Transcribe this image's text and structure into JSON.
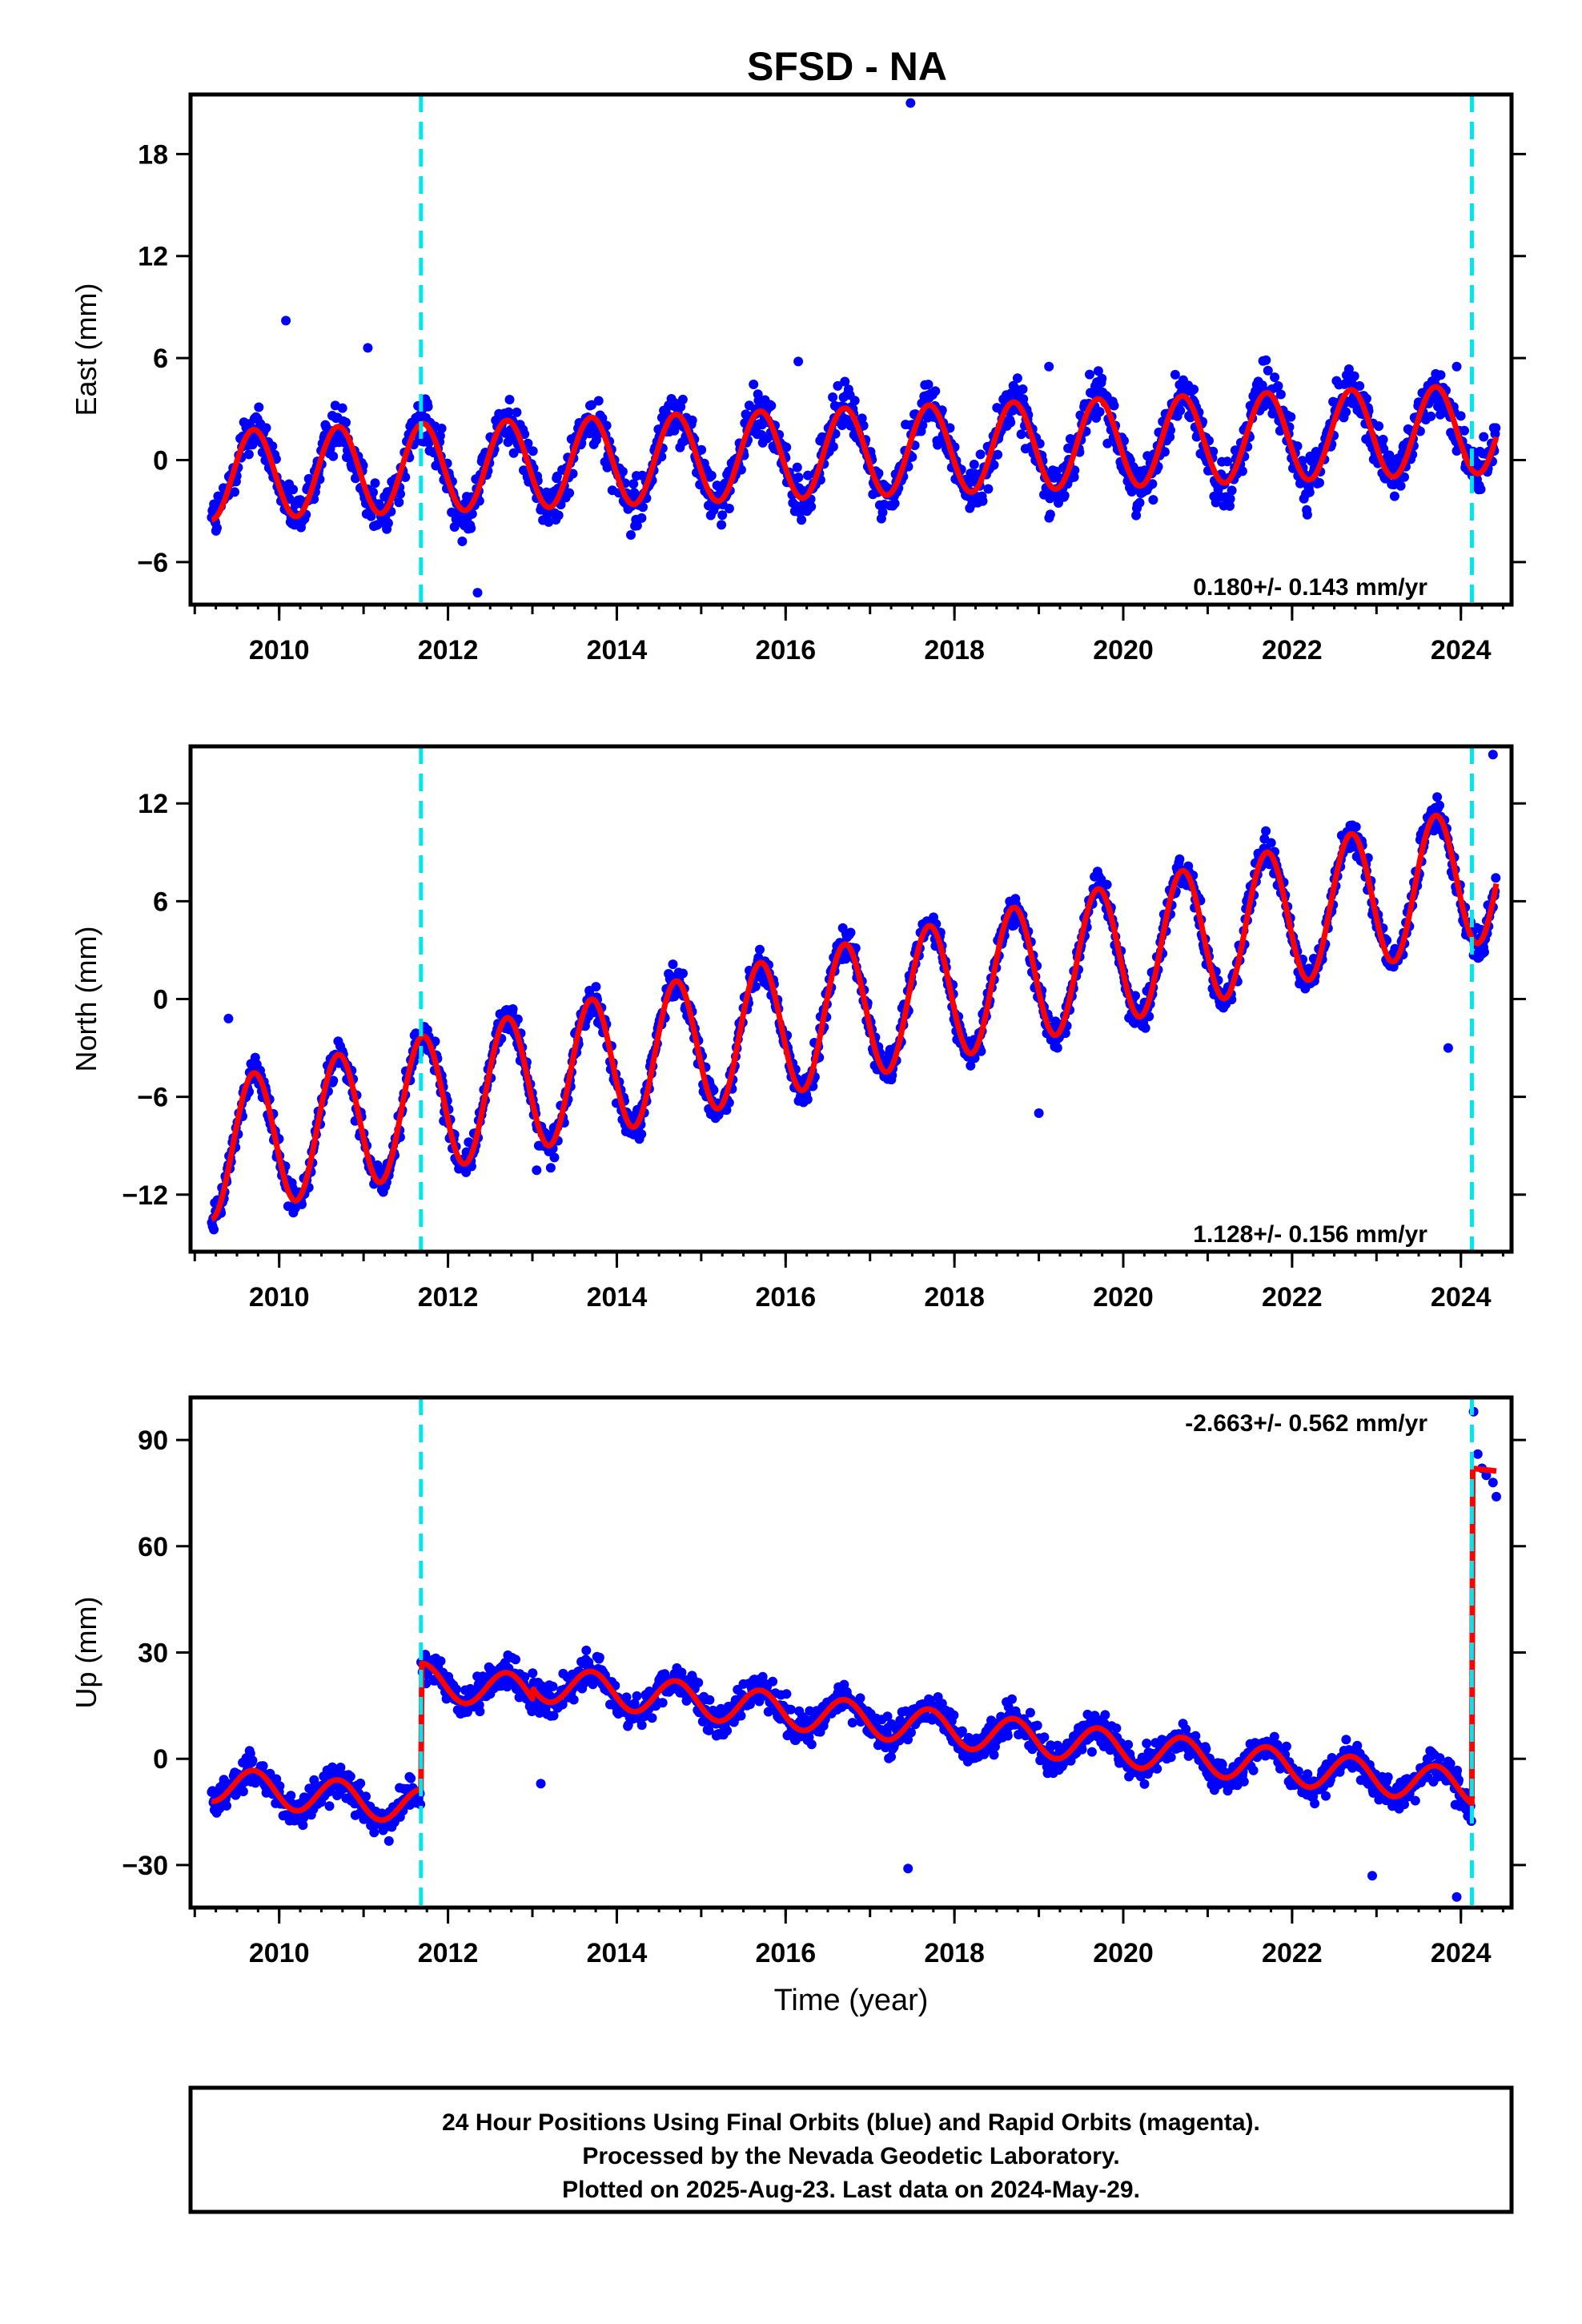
{
  "title": "SFSD - NA",
  "colors": {
    "final_orbits": "#0000ff",
    "model": "#ff0000",
    "offset_line": "#00e5ee",
    "frame": "#000000"
  },
  "footer": {
    "line1": "24 Hour Positions Using Final Orbits (blue) and Rapid Orbits (magenta).",
    "line2": "Processed by the Nevada Geodetic Laboratory.",
    "line3": "Plotted on 2025-Aug-23. Last data on 2024-May-29."
  },
  "chart_data": [
    {
      "type": "scatter",
      "ylabel": "East (mm)",
      "xlabel": "",
      "xlim": [
        2008.95,
        2024.6
      ],
      "ylim": [
        -8.5,
        21.5
      ],
      "xticks": [
        2010,
        2012,
        2014,
        2016,
        2018,
        2020,
        2022,
        2024
      ],
      "yticks": [
        -6,
        0,
        6,
        12,
        18
      ],
      "ytick_labels": [
        "−6",
        "0",
        "6",
        "12",
        "18"
      ],
      "offsets": [
        2011.68,
        2024.13
      ],
      "rate_text": "0.180+/- 0.143 mm/yr",
      "rate_position": "bottom-right",
      "series": [
        {
          "kind": "points",
          "x_range": [
            2009.2,
            2024.42
          ],
          "amplitude": 2.6,
          "noise": 1.3,
          "trend": 0.18,
          "offset": -0.9,
          "outliers": [
            [
              2017.48,
              21.0
            ],
            [
              2010.08,
              8.2
            ],
            [
              2011.05,
              6.6
            ],
            [
              2016.15,
              5.8
            ],
            [
              2019.12,
              5.5
            ],
            [
              2023.95,
              5.5
            ],
            [
              2012.35,
              -7.8
            ]
          ]
        },
        {
          "kind": "model",
          "trend": 0.18,
          "offset": -0.9,
          "amplitude": 2.6
        }
      ]
    },
    {
      "type": "scatter",
      "ylabel": "North (mm)",
      "xlabel": "",
      "xlim": [
        2008.95,
        2024.6
      ],
      "ylim": [
        -15.5,
        15.5
      ],
      "xticks": [
        2010,
        2012,
        2014,
        2016,
        2018,
        2020,
        2022,
        2024
      ],
      "yticks": [
        -12,
        -6,
        0,
        6,
        12
      ],
      "ytick_labels": [
        "−12",
        "−6",
        "0",
        "6",
        "12"
      ],
      "offsets": [
        2011.68,
        2024.13
      ],
      "rate_text": "1.128+/- 0.156 mm/yr",
      "rate_position": "bottom-right",
      "series": [
        {
          "kind": "points",
          "x_range": [
            2009.2,
            2024.42
          ],
          "amplitude": 4.2,
          "noise": 0.9,
          "trend": 1.128,
          "offset": -9.3,
          "outliers": [
            [
              2024.38,
              15.0
            ],
            [
              2009.4,
              -1.2
            ],
            [
              2013.05,
              -10.5
            ],
            [
              2019.0,
              -7.0
            ],
            [
              2023.85,
              -3.0
            ]
          ]
        },
        {
          "kind": "model",
          "trend": 1.128,
          "offset": -9.3,
          "amplitude": 4.2
        }
      ]
    },
    {
      "type": "scatter",
      "ylabel": "Up (mm)",
      "xlabel": "Time (year)",
      "xlim": [
        2008.95,
        2024.6
      ],
      "ylim": [
        -42,
        102
      ],
      "xticks": [
        2010,
        2012,
        2014,
        2016,
        2018,
        2020,
        2022,
        2024
      ],
      "yticks": [
        -30,
        0,
        30,
        60,
        90
      ],
      "ytick_labels": [
        "−30",
        "0",
        "30",
        "60",
        "90"
      ],
      "offsets": [
        2011.68,
        2024.13
      ],
      "rate_text": "-2.663+/- 0.562 mm/yr",
      "rate_position": "top-right",
      "series": [
        {
          "kind": "points",
          "x_range": [
            2009.2,
            2024.13
          ],
          "amplitude": 5.0,
          "noise": 4.2,
          "trend": -2.663,
          "segments": [
            [
              2009.2,
              2011.68,
              -7
            ],
            [
              2011.68,
              2013.0,
              22
            ],
            [
              2013.0,
              2024.13,
              21.5
            ]
          ],
          "outliers": [
            [
              2024.15,
              98.0
            ],
            [
              2024.2,
              86.0
            ],
            [
              2024.25,
              82.0
            ],
            [
              2024.3,
              80.0
            ],
            [
              2024.38,
              78.0
            ],
            [
              2024.42,
              74.0
            ],
            [
              2017.45,
              -31.0
            ],
            [
              2023.95,
              -39.0
            ],
            [
              2022.95,
              -33.0
            ],
            [
              2013.1,
              -7.0
            ]
          ]
        },
        {
          "kind": "model",
          "trend": -2.663,
          "amplitude": 5.0,
          "segments": [
            [
              2009.2,
              2011.68,
              -7
            ],
            [
              2011.68,
              2013.0,
              22
            ],
            [
              2013.0,
              2024.13,
              21.5
            ],
            [
              2024.13,
              2024.42,
              82
            ]
          ]
        }
      ]
    }
  ]
}
